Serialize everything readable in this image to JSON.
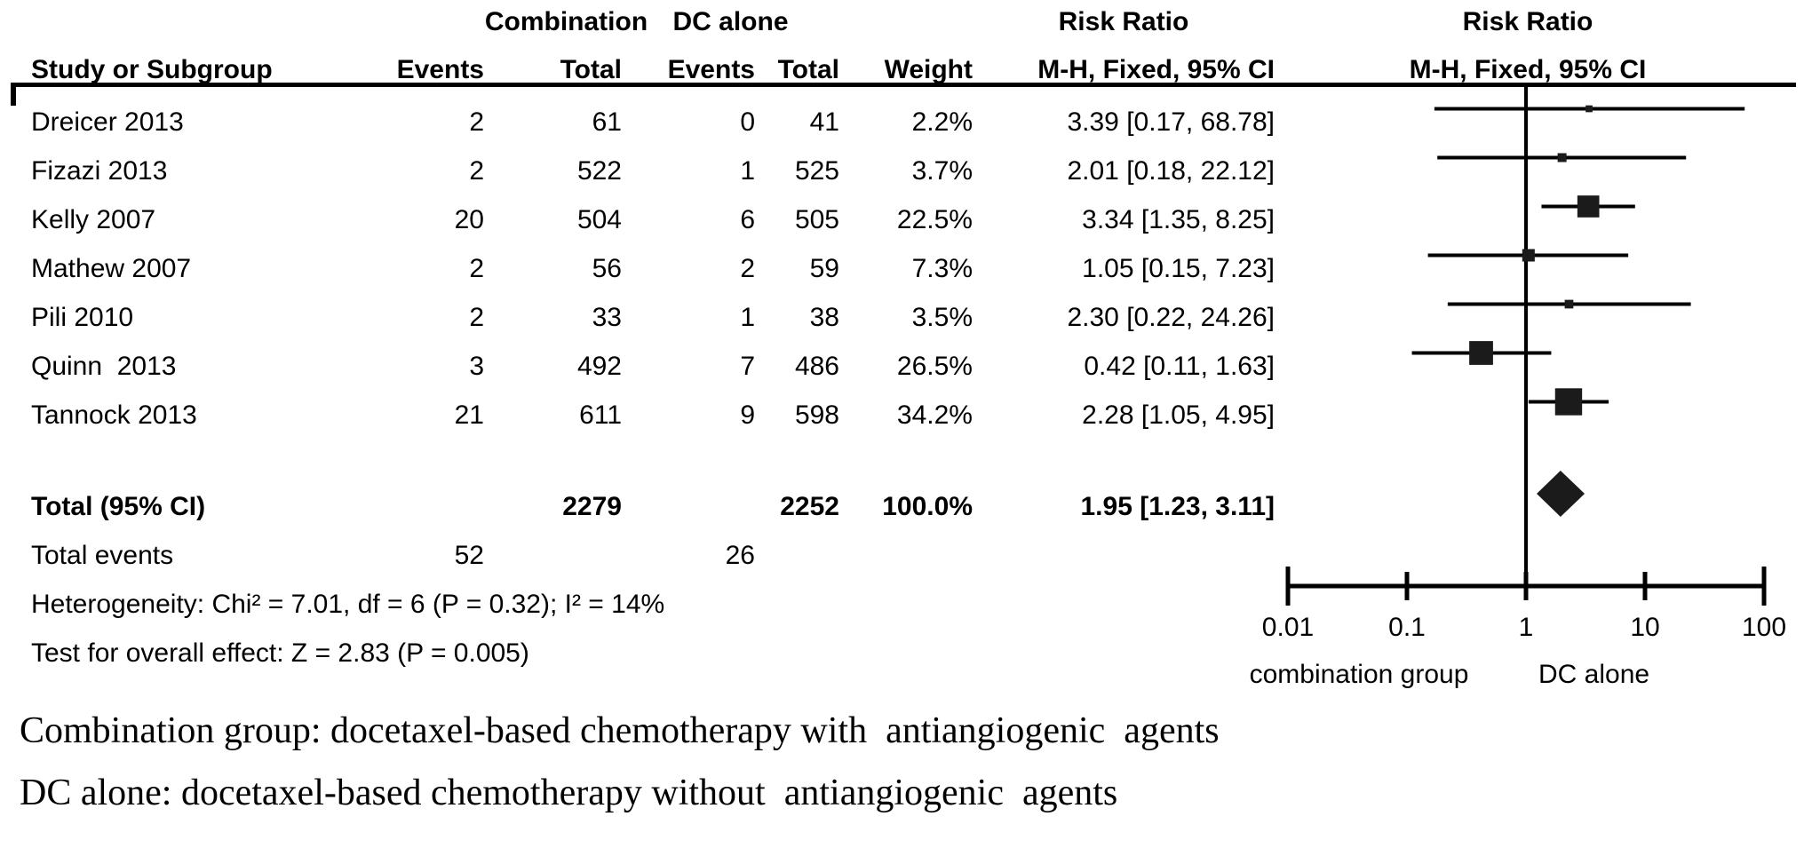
{
  "table": {
    "group1_header": "Combination",
    "group2_header": "DC alone",
    "risk_ratio_header_left": "Risk Ratio",
    "risk_ratio_header_right": "Risk Ratio",
    "col_study": "Study or Subgroup",
    "col_events1": "Events",
    "col_total1": "Total",
    "col_events2": "Events",
    "col_total2": "Total",
    "col_weight": "Weight",
    "col_method_left": "M-H, Fixed, 95% CI",
    "col_method_right": "M-H, Fixed, 95% CI",
    "rows": [
      {
        "study": "Dreicer 2013",
        "events1": "2",
        "total1": "61",
        "events2": "0",
        "total2": "41",
        "weight": "2.2%",
        "rr_text": "3.39 [0.17, 68.78]"
      },
      {
        "study": "Fizazi 2013",
        "events1": "2",
        "total1": "522",
        "events2": "1",
        "total2": "525",
        "weight": "3.7%",
        "rr_text": "2.01 [0.18, 22.12]"
      },
      {
        "study": "Kelly 2007",
        "events1": "20",
        "total1": "504",
        "events2": "6",
        "total2": "505",
        "weight": "22.5%",
        "rr_text": "3.34 [1.35, 8.25]"
      },
      {
        "study": "Mathew 2007",
        "events1": "2",
        "total1": "56",
        "events2": "2",
        "total2": "59",
        "weight": "7.3%",
        "rr_text": "1.05 [0.15, 7.23]"
      },
      {
        "study": "Pili 2010",
        "events1": "2",
        "total1": "33",
        "events2": "1",
        "total2": "38",
        "weight": "3.5%",
        "rr_text": "2.30 [0.22, 24.26]"
      },
      {
        "study": "Quinn  2013",
        "events1": "3",
        "total1": "492",
        "events2": "7",
        "total2": "486",
        "weight": "26.5%",
        "rr_text": "0.42 [0.11, 1.63]"
      },
      {
        "study": "Tannock 2013",
        "events1": "21",
        "total1": "611",
        "events2": "9",
        "total2": "598",
        "weight": "34.2%",
        "rr_text": "2.28 [1.05, 4.95]"
      }
    ],
    "total_row": {
      "label": "Total (95% CI)",
      "total1": "2279",
      "total2": "2252",
      "weight": "100.0%",
      "rr_text": "1.95 [1.23, 3.11]"
    },
    "total_events_row": {
      "label": "Total events",
      "events1": "52",
      "events2": "26"
    },
    "heterogeneity": "Heterogeneity: Chi² = 7.01, df = 6 (P = 0.32); I² = 14%",
    "overall_effect": "Test for overall effect: Z = 2.83 (P = 0.005)"
  },
  "chart_data": {
    "type": "forest",
    "effect_measure": "Risk Ratio",
    "method": "M-H, Fixed, 95% CI",
    "x_scale": "log10",
    "x_ticks": [
      0.01,
      0.1,
      1,
      10,
      100
    ],
    "x_tick_labels": [
      "0.01",
      "0.1",
      "1",
      "10",
      "100"
    ],
    "favors_left_label": "combination group",
    "favors_right_label": "DC alone",
    "no_effect_value": 1,
    "studies": [
      {
        "name": "Dreicer 2013",
        "rr": 3.39,
        "ci_low": 0.17,
        "ci_high": 68.78,
        "weight_pct": 2.2
      },
      {
        "name": "Fizazi 2013",
        "rr": 2.01,
        "ci_low": 0.18,
        "ci_high": 22.12,
        "weight_pct": 3.7
      },
      {
        "name": "Kelly 2007",
        "rr": 3.34,
        "ci_low": 1.35,
        "ci_high": 8.25,
        "weight_pct": 22.5
      },
      {
        "name": "Mathew 2007",
        "rr": 1.05,
        "ci_low": 0.15,
        "ci_high": 7.23,
        "weight_pct": 7.3
      },
      {
        "name": "Pili 2010",
        "rr": 2.3,
        "ci_low": 0.22,
        "ci_high": 24.26,
        "weight_pct": 3.5
      },
      {
        "name": "Quinn 2013",
        "rr": 0.42,
        "ci_low": 0.11,
        "ci_high": 1.63,
        "weight_pct": 26.5
      },
      {
        "name": "Tannock 2013",
        "rr": 2.28,
        "ci_low": 1.05,
        "ci_high": 4.95,
        "weight_pct": 34.2
      }
    ],
    "total": {
      "rr": 1.95,
      "ci_low": 1.23,
      "ci_high": 3.11,
      "weight_pct": 100.0
    },
    "marker_color": "#1b1b1b",
    "line_color": "#000000"
  },
  "footnotes": {
    "line1": "Combination group: docetaxel-based chemotherapy with  antiangiogenic  agents",
    "line2": "DC alone: docetaxel-based chemotherapy without  antiangiogenic  agents"
  }
}
